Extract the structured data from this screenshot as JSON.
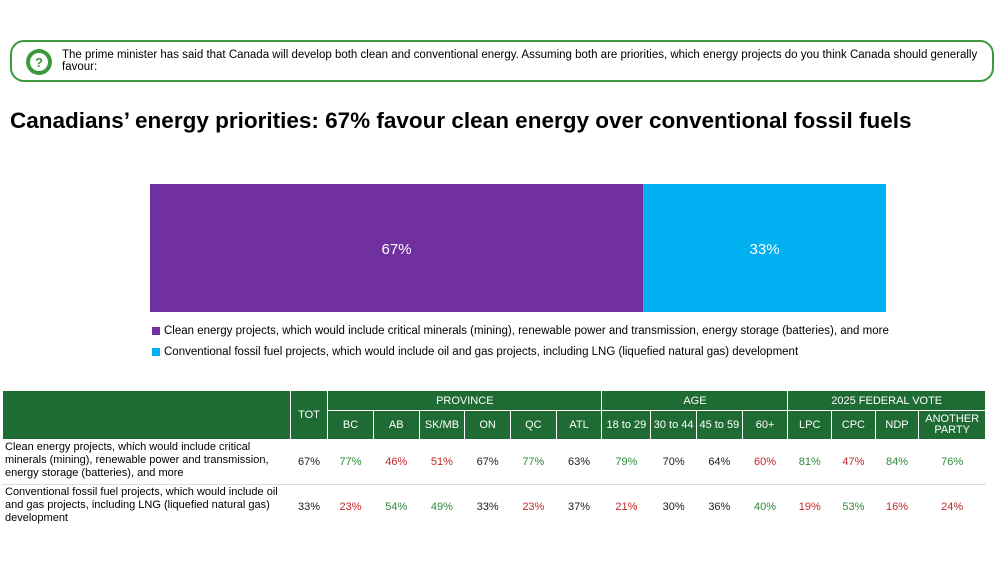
{
  "question": "The prime minister has said that Canada will develop both clean and conventional energy. Assuming both are priorities, which energy projects do you think Canada should generally favour:",
  "title": "Canadians’ energy priorities: 67% favour clean energy over conventional fossil fuels",
  "icons": {
    "question": "question-mark-icon"
  },
  "colors": {
    "clean": "#7030a0",
    "fossil": "#00b0f0",
    "header": "#1f6b34",
    "positive": "#2e8b3a",
    "negative": "#c3272b",
    "border": "#3c9a3c"
  },
  "chart_data": {
    "type": "bar",
    "orientation": "horizontal-stacked",
    "categories": [
      ""
    ],
    "series": [
      {
        "name": "Clean energy projects, which would include critical minerals (mining), renewable power and transmission, energy storage (batteries), and more",
        "values": [
          67
        ],
        "label": "67%"
      },
      {
        "name": "Conventional fossil fuel projects, which would include oil and gas projects, including LNG (liquefied natural gas) development",
        "values": [
          33
        ],
        "label": "33%"
      }
    ],
    "xlim": [
      0,
      100
    ],
    "grid": false,
    "legend_position": "bottom"
  },
  "table": {
    "tot_header": "TOT",
    "groups": [
      {
        "label": "PROVINCE",
        "columns": [
          "BC",
          "AB",
          "SK/MB",
          "ON",
          "QC",
          "ATL"
        ]
      },
      {
        "label": "AGE",
        "columns": [
          "18 to 29",
          "30 to 44",
          "45 to 59",
          "60+"
        ]
      },
      {
        "label": "2025 FEDERAL VOTE",
        "columns": [
          "LPC",
          "CPC",
          "NDP",
          "ANOTHER PARTY"
        ]
      }
    ],
    "rows": [
      {
        "label": "Clean energy projects, which would include critical minerals (mining), renewable power and transmission, energy storage (batteries), and more",
        "cells": [
          {
            "text": "67%",
            "tone": "black"
          },
          {
            "text": "77%",
            "tone": "green"
          },
          {
            "text": "46%",
            "tone": "red"
          },
          {
            "text": "51%",
            "tone": "red"
          },
          {
            "text": "67%",
            "tone": "black"
          },
          {
            "text": "77%",
            "tone": "green"
          },
          {
            "text": "63%",
            "tone": "black"
          },
          {
            "text": "79%",
            "tone": "green"
          },
          {
            "text": "70%",
            "tone": "black"
          },
          {
            "text": "64%",
            "tone": "black"
          },
          {
            "text": "60%",
            "tone": "red"
          },
          {
            "text": "81%",
            "tone": "green"
          },
          {
            "text": "47%",
            "tone": "red"
          },
          {
            "text": "84%",
            "tone": "green"
          },
          {
            "text": "76%",
            "tone": "green"
          }
        ]
      },
      {
        "label": "Conventional fossil fuel projects, which would include oil and gas projects, including LNG (liquefied natural gas) development",
        "cells": [
          {
            "text": "33%",
            "tone": "black"
          },
          {
            "text": "23%",
            "tone": "red"
          },
          {
            "text": "54%",
            "tone": "green"
          },
          {
            "text": "49%",
            "tone": "green"
          },
          {
            "text": "33%",
            "tone": "black"
          },
          {
            "text": "23%",
            "tone": "red"
          },
          {
            "text": "37%",
            "tone": "black"
          },
          {
            "text": "21%",
            "tone": "red"
          },
          {
            "text": "30%",
            "tone": "black"
          },
          {
            "text": "36%",
            "tone": "black"
          },
          {
            "text": "40%",
            "tone": "green"
          },
          {
            "text": "19%",
            "tone": "red"
          },
          {
            "text": "53%",
            "tone": "green"
          },
          {
            "text": "16%",
            "tone": "red"
          },
          {
            "text": "24%",
            "tone": "red"
          }
        ]
      }
    ]
  }
}
